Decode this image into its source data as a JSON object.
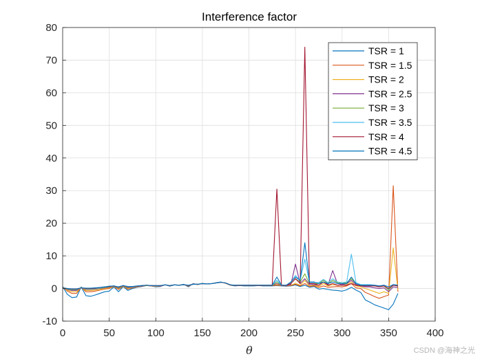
{
  "watermark": "CSDN @海神之光",
  "chart_data": {
    "type": "line",
    "title": "Interference factor",
    "xlabel": "θ",
    "ylabel": "",
    "xlim": [
      0,
      400
    ],
    "ylim": [
      -10,
      80
    ],
    "xticks": [
      0,
      50,
      100,
      150,
      200,
      250,
      300,
      350,
      400
    ],
    "yticks": [
      -10,
      0,
      10,
      20,
      30,
      40,
      50,
      60,
      70,
      80
    ],
    "grid": true,
    "legend_position": "top-right",
    "x": [
      0,
      5,
      10,
      15,
      20,
      25,
      30,
      35,
      40,
      45,
      50,
      55,
      60,
      65,
      70,
      75,
      80,
      85,
      90,
      95,
      100,
      105,
      110,
      115,
      120,
      125,
      130,
      135,
      140,
      145,
      150,
      155,
      160,
      165,
      170,
      175,
      180,
      185,
      190,
      195,
      200,
      205,
      210,
      215,
      220,
      225,
      230,
      235,
      240,
      245,
      250,
      255,
      260,
      265,
      270,
      275,
      280,
      285,
      290,
      295,
      300,
      305,
      310,
      315,
      320,
      325,
      330,
      335,
      340,
      345,
      350,
      355,
      360
    ],
    "series": [
      {
        "name": "TSR = 1",
        "color": "#0072BD",
        "values": [
          0.6,
          -1.8,
          -2.8,
          -2.6,
          0.5,
          -2.2,
          -2.4,
          -2.0,
          -1.5,
          -1.0,
          -0.8,
          0.5,
          -1.0,
          0.6,
          -0.6,
          0.0,
          0.4,
          0.6,
          0.9,
          0.8,
          0.5,
          0.6,
          1.2,
          0.7,
          1.1,
          1.0,
          1.3,
          0.5,
          1.5,
          1.2,
          1.6,
          1.4,
          1.5,
          1.8,
          2.0,
          1.6,
          1.0,
          0.8,
          0.9,
          0.8,
          0.8,
          0.8,
          0.9,
          0.8,
          0.8,
          0.8,
          0.9,
          0.8,
          0.7,
          0.8,
          1.1,
          0.6,
          1.0,
          0.4,
          0.6,
          -0.2,
          0.0,
          -0.3,
          -0.5,
          -0.6,
          -0.8,
          -0.4,
          0.4,
          -0.5,
          -1.2,
          -3.5,
          -4.2,
          -5.0,
          -5.5,
          -6.0,
          -6.5,
          -4.8,
          -1.5
        ]
      },
      {
        "name": "TSR = 1.5",
        "color": "#D95319",
        "values": [
          0.5,
          -0.8,
          -1.5,
          -1.5,
          0.4,
          -1.0,
          -1.0,
          -0.8,
          -0.5,
          -0.2,
          0.0,
          0.6,
          -0.3,
          0.7,
          -0.2,
          0.2,
          0.5,
          0.7,
          0.9,
          0.8,
          0.6,
          0.7,
          1.1,
          0.8,
          1.1,
          1.0,
          1.2,
          0.7,
          1.4,
          1.2,
          1.5,
          1.4,
          1.5,
          1.7,
          1.9,
          1.6,
          1.0,
          0.9,
          0.9,
          0.9,
          0.9,
          0.9,
          0.9,
          0.9,
          0.9,
          0.9,
          1.0,
          0.9,
          0.8,
          0.9,
          1.3,
          0.8,
          1.5,
          0.6,
          0.8,
          0.3,
          0.8,
          0.4,
          0.5,
          0.6,
          0.5,
          0.8,
          1.5,
          0.2,
          0.0,
          -1.2,
          -1.8,
          -2.5,
          -3.0,
          -2.5,
          -2.0,
          31.5,
          -1.0
        ]
      },
      {
        "name": "TSR = 2",
        "color": "#EDB120",
        "values": [
          0.4,
          -0.5,
          -1.0,
          -1.0,
          0.3,
          -0.6,
          -0.6,
          -0.5,
          -0.3,
          0.0,
          0.2,
          0.7,
          -0.1,
          0.8,
          0.0,
          0.3,
          0.6,
          0.8,
          0.9,
          0.9,
          0.7,
          0.8,
          1.1,
          0.9,
          1.1,
          1.0,
          1.2,
          0.8,
          1.4,
          1.3,
          1.5,
          1.4,
          1.5,
          1.7,
          1.9,
          1.7,
          1.1,
          1.0,
          1.0,
          1.0,
          1.0,
          1.0,
          1.0,
          1.0,
          1.0,
          1.0,
          1.2,
          1.0,
          0.9,
          1.0,
          1.6,
          1.0,
          2.5,
          0.8,
          1.0,
          0.6,
          1.5,
          0.8,
          1.2,
          1.0,
          1.0,
          1.2,
          2.0,
          0.8,
          0.5,
          0.0,
          -0.5,
          -1.0,
          -1.5,
          -1.0,
          -1.5,
          12.5,
          -0.5
        ]
      },
      {
        "name": "TSR = 2.5",
        "color": "#7E2F8E",
        "values": [
          0.3,
          -0.3,
          -0.6,
          -0.6,
          0.3,
          -0.3,
          -0.3,
          -0.2,
          0.0,
          0.2,
          0.4,
          0.8,
          0.1,
          0.9,
          0.2,
          0.4,
          0.7,
          0.8,
          1.0,
          0.9,
          0.8,
          0.8,
          1.1,
          0.9,
          1.1,
          1.0,
          1.2,
          0.9,
          1.4,
          1.3,
          1.5,
          1.4,
          1.5,
          1.7,
          1.9,
          1.7,
          1.1,
          1.0,
          1.0,
          1.0,
          1.0,
          1.0,
          1.0,
          1.0,
          1.0,
          1.0,
          1.5,
          1.0,
          0.9,
          1.2,
          7.5,
          1.5,
          3.0,
          1.2,
          1.2,
          1.0,
          2.0,
          1.2,
          5.5,
          1.5,
          1.2,
          1.5,
          2.5,
          1.2,
          0.8,
          0.5,
          0.5,
          0.2,
          0.0,
          0.2,
          -1.0,
          0.5,
          0.3
        ]
      },
      {
        "name": "TSR = 3",
        "color": "#77AC30",
        "values": [
          0.3,
          -0.2,
          -0.4,
          -0.4,
          0.3,
          -0.2,
          -0.2,
          -0.1,
          0.1,
          0.3,
          0.5,
          0.8,
          0.2,
          0.9,
          0.3,
          0.5,
          0.7,
          0.9,
          1.0,
          0.9,
          0.8,
          0.9,
          1.1,
          0.9,
          1.1,
          1.0,
          1.2,
          0.9,
          1.3,
          1.3,
          1.5,
          1.4,
          1.5,
          1.7,
          1.9,
          1.7,
          1.1,
          1.0,
          1.0,
          1.0,
          1.0,
          1.0,
          1.0,
          1.0,
          1.0,
          1.0,
          2.0,
          1.0,
          1.0,
          1.5,
          3.0,
          2.0,
          4.5,
          1.5,
          1.5,
          1.5,
          2.5,
          1.5,
          2.5,
          1.8,
          1.5,
          1.8,
          3.0,
          1.5,
          1.0,
          1.0,
          1.0,
          0.8,
          0.5,
          0.8,
          -0.5,
          1.0,
          0.8
        ]
      },
      {
        "name": "TSR = 3.5",
        "color": "#4DBEEE",
        "values": [
          0.2,
          -0.1,
          -0.3,
          -0.3,
          0.2,
          -0.1,
          -0.1,
          0.0,
          0.2,
          0.4,
          0.6,
          0.8,
          0.3,
          0.9,
          0.4,
          0.5,
          0.7,
          0.9,
          1.0,
          0.9,
          0.8,
          0.9,
          1.1,
          0.9,
          1.1,
          1.0,
          1.2,
          0.9,
          1.3,
          1.3,
          1.5,
          1.4,
          1.5,
          1.7,
          1.9,
          1.7,
          1.1,
          1.0,
          1.0,
          1.0,
          1.0,
          1.0,
          1.0,
          1.0,
          1.0,
          1.0,
          2.5,
          1.0,
          1.0,
          1.8,
          4.0,
          2.5,
          9.0,
          1.8,
          1.8,
          1.8,
          2.8,
          1.8,
          3.0,
          2.0,
          1.8,
          2.0,
          10.5,
          1.8,
          1.2,
          1.2,
          1.2,
          1.0,
          0.8,
          1.0,
          -0.2,
          1.2,
          1.0
        ]
      },
      {
        "name": "TSR = 4",
        "color": "#A2142F",
        "values": [
          0.2,
          0.0,
          -0.2,
          -0.2,
          0.2,
          0.0,
          0.0,
          0.1,
          0.3,
          0.5,
          0.6,
          0.8,
          0.4,
          0.9,
          0.5,
          0.6,
          0.7,
          0.9,
          1.0,
          0.9,
          0.9,
          0.9,
          1.1,
          0.9,
          1.1,
          1.0,
          1.2,
          0.9,
          1.3,
          1.3,
          1.5,
          1.4,
          1.5,
          1.7,
          1.9,
          1.7,
          1.1,
          1.0,
          1.0,
          1.0,
          1.0,
          1.0,
          1.0,
          1.0,
          1.0,
          1.0,
          30.5,
          1.0,
          1.0,
          1.5,
          3.0,
          1.5,
          74.0,
          1.5,
          1.5,
          1.0,
          2.0,
          1.0,
          1.5,
          1.0,
          1.0,
          1.0,
          1.5,
          1.0,
          0.8,
          0.8,
          0.8,
          0.8,
          0.5,
          0.8,
          0.0,
          1.0,
          0.8
        ]
      },
      {
        "name": "TSR = 4.5",
        "color": "#0072BD",
        "values": [
          0.2,
          0.0,
          -0.1,
          -0.1,
          0.2,
          0.1,
          0.1,
          0.2,
          0.3,
          0.5,
          0.7,
          0.8,
          0.5,
          0.9,
          0.6,
          0.6,
          0.8,
          0.9,
          1.0,
          0.9,
          0.9,
          0.9,
          1.1,
          0.9,
          1.1,
          1.0,
          1.2,
          1.0,
          1.3,
          1.3,
          1.5,
          1.4,
          1.5,
          1.7,
          1.9,
          1.7,
          1.1,
          1.0,
          1.0,
          1.0,
          1.0,
          1.0,
          1.0,
          1.0,
          1.0,
          1.0,
          3.5,
          1.0,
          1.0,
          2.0,
          3.5,
          2.5,
          14.0,
          2.0,
          2.0,
          1.5,
          2.0,
          1.5,
          2.0,
          1.5,
          1.5,
          1.5,
          3.5,
          1.5,
          1.0,
          1.0,
          1.0,
          1.0,
          0.8,
          1.0,
          0.5,
          1.2,
          1.0
        ]
      }
    ]
  }
}
